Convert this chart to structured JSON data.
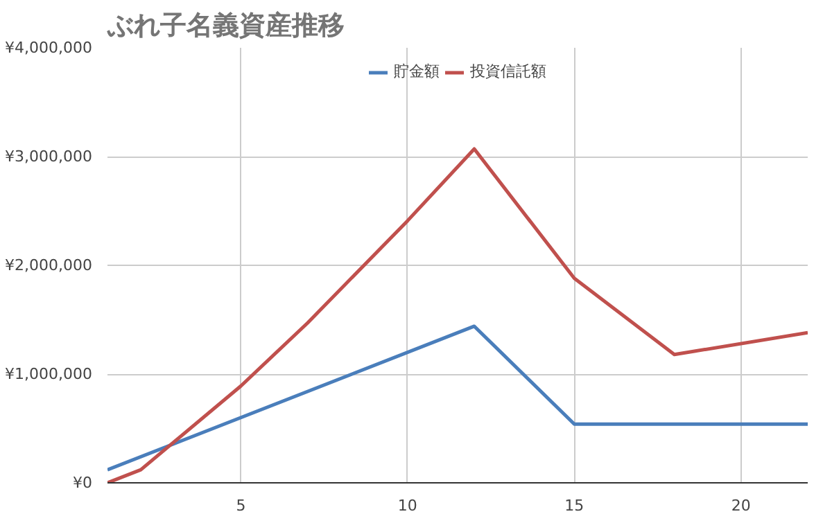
{
  "chart_data": {
    "type": "line",
    "title": "ぶれ子名義資産推移",
    "series": [
      {
        "name": "貯金額",
        "color": "#4a7ebb",
        "x": [
          1,
          12,
          15,
          22
        ],
        "values": [
          120000,
          1440000,
          540000,
          540000
        ]
      },
      {
        "name": "投資信託額",
        "color": "#c0504d",
        "x": [
          1,
          2,
          5,
          7,
          10,
          12,
          15,
          18,
          22
        ],
        "values": [
          0,
          120000,
          890000,
          1470000,
          2410000,
          3070000,
          1880000,
          1180000,
          1380000
        ]
      }
    ],
    "xlim": [
      1,
      22
    ],
    "xticks": [
      5,
      10,
      15,
      20
    ],
    "ylim": [
      0,
      4000000
    ],
    "yticks": [
      {
        "value": 0,
        "label": "¥0"
      },
      {
        "value": 1000000,
        "label": "¥1,000,000"
      },
      {
        "value": 2000000,
        "label": "¥2,000,000"
      },
      {
        "value": 3000000,
        "label": "¥3,000,000"
      },
      {
        "value": 4000000,
        "label": "¥4,000,000"
      }
    ],
    "grid": true,
    "legend": "top",
    "marker": "none",
    "line_style": "solid"
  }
}
